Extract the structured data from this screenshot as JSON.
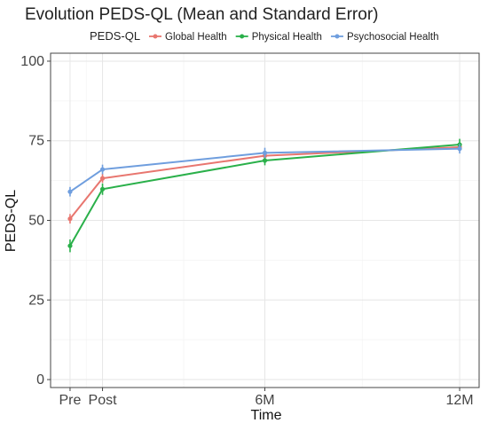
{
  "chart_data": {
    "type": "line",
    "title": "Evolution PEDS-QL (Mean and Standard Error)",
    "xlabel": "Time",
    "ylabel": "PEDS-QL",
    "legend_title": "PEDS-QL",
    "legend_position": "top",
    "grid": true,
    "x": [
      0,
      1,
      6,
      12
    ],
    "x_tick_labels": [
      "Pre",
      "Post",
      "6M",
      "12M"
    ],
    "y_ticks": [
      0,
      25,
      50,
      75,
      100
    ],
    "xlim": [
      -0.6,
      12.6
    ],
    "ylim": [
      -2.5,
      102.5
    ],
    "series": [
      {
        "name": "Global Health",
        "color": "#e8766f",
        "values": [
          50.5,
          63.2,
          70.3,
          73.0
        ],
        "se": [
          1.5,
          1.4,
          1.5,
          1.3
        ]
      },
      {
        "name": "Physical Health",
        "color": "#2ab04a",
        "values": [
          42.0,
          59.8,
          68.8,
          73.8
        ],
        "se": [
          2.0,
          1.8,
          1.5,
          1.8
        ]
      },
      {
        "name": "Psychosocial Health",
        "color": "#6f9ede",
        "values": [
          59.0,
          66.0,
          71.2,
          72.5
        ],
        "se": [
          1.5,
          1.5,
          1.6,
          1.5
        ]
      }
    ]
  }
}
